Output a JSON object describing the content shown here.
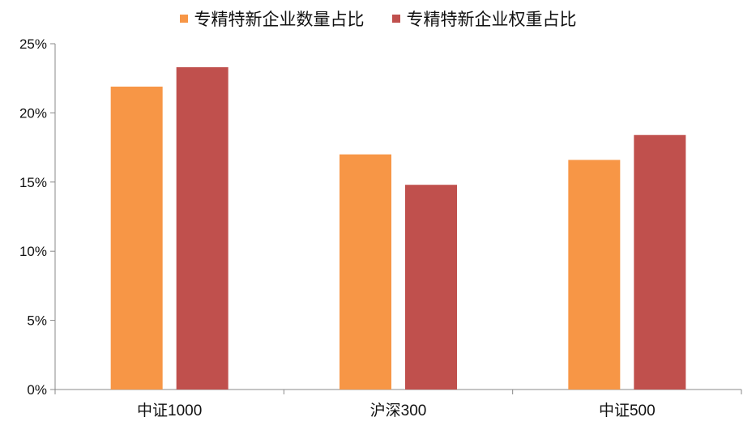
{
  "chart_data": {
    "type": "bar",
    "title": "",
    "xlabel": "",
    "ylabel": "",
    "categories": [
      "中证1000",
      "沪深300",
      "中证500"
    ],
    "series": [
      {
        "name": "专精特新企业数量占比",
        "color": "#F79646",
        "values": [
          21.9,
          17.0,
          16.6
        ]
      },
      {
        "name": "专精特新企业权重占比",
        "color": "#C0504D",
        "values": [
          23.3,
          14.8,
          18.4
        ]
      }
    ],
    "ylim": [
      0,
      25
    ],
    "yticks": [
      "0%",
      "5%",
      "10%",
      "15%",
      "20%",
      "25%"
    ],
    "ytick_values": [
      0,
      5,
      10,
      15,
      20,
      25
    ],
    "grid": false,
    "legend_position": "top"
  }
}
